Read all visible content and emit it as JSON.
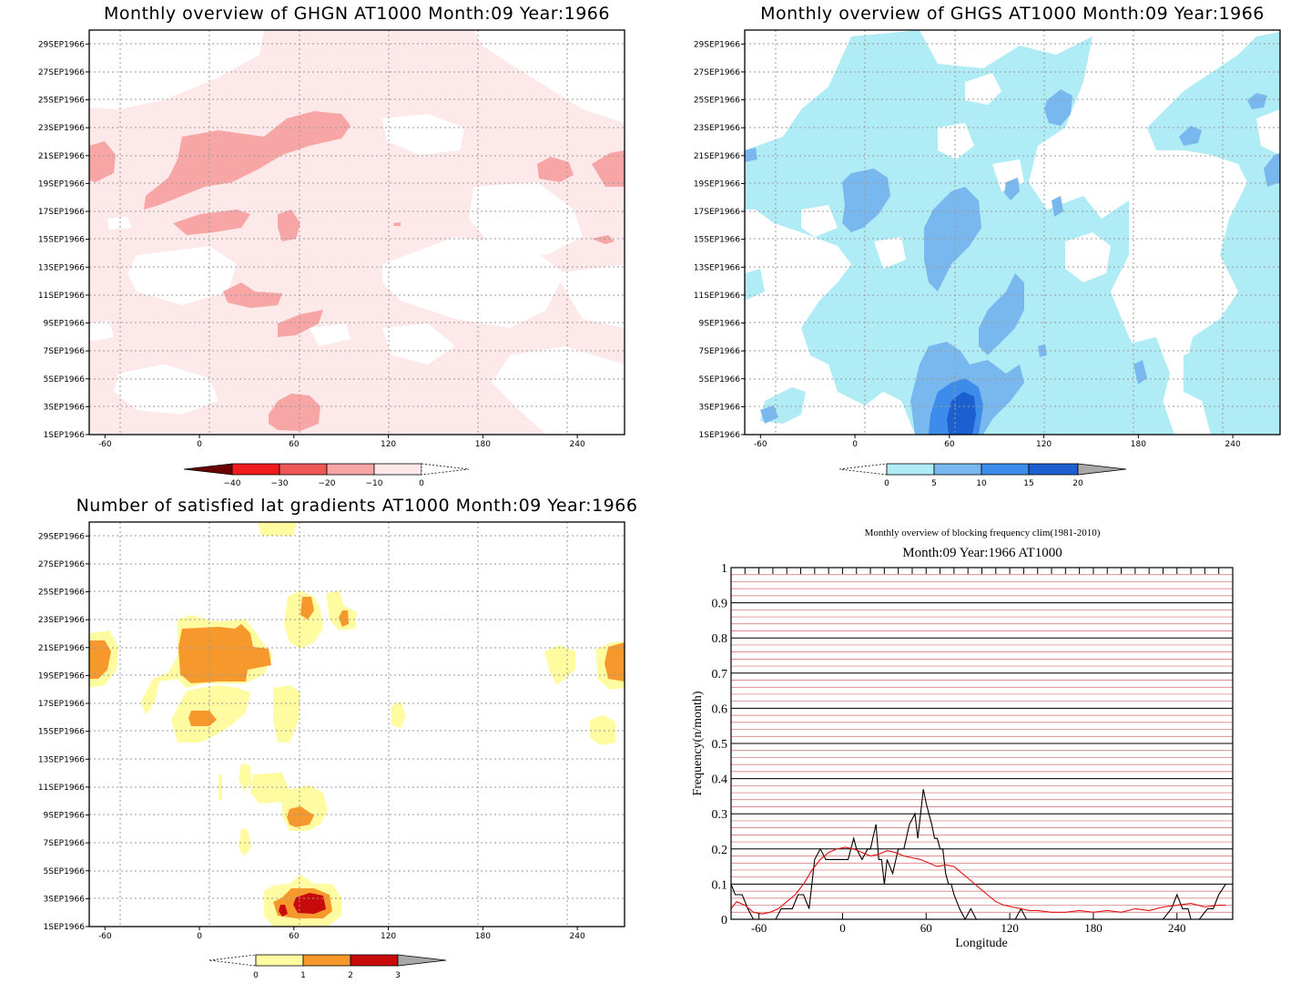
{
  "colors": {
    "ghgn": [
      "#6b0000",
      "#ee1c1c",
      "#ef5656",
      "#f7a5a5",
      "#fde9e9"
    ],
    "ghgs": [
      "#b0ecf5",
      "#78b8ef",
      "#3d8ceb",
      "#1c5fd0"
    ],
    "count": [
      "#fffba0",
      "#f7982d",
      "#c90a0a"
    ],
    "line_obs": "#000000",
    "line_clim": "#e01010",
    "grid_red": "#d26a6a"
  },
  "panels": {
    "ghgn": {
      "title": "Monthly overview of GHGN AT1000 Month:09 Year:1966",
      "colorbar_labels": [
        "−40",
        "−30",
        "−20",
        "−10",
        "0"
      ]
    },
    "ghgs": {
      "title": "Monthly overview of GHGS AT1000 Month:09 Year:1966",
      "colorbar_labels": [
        "0",
        "5",
        "10",
        "15",
        "20"
      ]
    },
    "count": {
      "title": "Number of satisfied lat gradients AT1000 Month:09 Year:1966",
      "colorbar_labels": [
        "0",
        "1",
        "2",
        "3"
      ]
    },
    "freq": {
      "title": "Monthly overview of blocking frequency clim(1981-2010)",
      "subtitle": "Month:09 Year:1966  AT1000",
      "xlabel": "Longitude",
      "ylabel": "Frequency(n/month)"
    }
  },
  "y_date_labels": [
    "29SEP1966",
    "27SEP1966",
    "25SEP1966",
    "23SEP1966",
    "21SEP1966",
    "19SEP1966",
    "17SEP1966",
    "15SEP1966",
    "13SEP1966",
    "11SEP1966",
    "9SEP1966",
    "7SEP1966",
    "5SEP1966",
    "3SEP1966",
    "1SEP1966"
  ],
  "x_lon_labels": [
    "-60",
    "0",
    "60",
    "120",
    "180",
    "240"
  ],
  "chart_data": [
    {
      "type": "heatmap",
      "panel": "ghgn",
      "x_range": [
        -70,
        270
      ],
      "y_range": [
        "1SEP1966",
        "30SEP1966"
      ],
      "contour_levels": [
        -40,
        -30,
        -20,
        -10,
        0
      ],
      "note_regions": [
        {
          "level": "-20 to -10",
          "lon": [
            -10,
            90
          ],
          "date": "20SEP1966–24SEP1966"
        },
        {
          "level": "-20 to -10",
          "lon": [
            40,
            75
          ],
          "date": "2SEP1966–4SEP1966"
        }
      ]
    },
    {
      "type": "heatmap",
      "panel": "ghgs",
      "x_range": [
        -70,
        270
      ],
      "y_range": [
        "1SEP1966",
        "30SEP1966"
      ],
      "contour_levels": [
        0,
        5,
        10,
        15,
        20
      ],
      "note_regions": [
        {
          "level": "15 to 20",
          "lon": [
            45,
            75
          ],
          "date": "1SEP1966–3SEP1966"
        }
      ]
    },
    {
      "type": "heatmap",
      "panel": "count",
      "x_range": [
        -70,
        270
      ],
      "y_range": [
        "1SEP1966",
        "30SEP1966"
      ],
      "contour_levels": [
        0,
        1,
        2,
        3
      ],
      "note_regions": [
        {
          "level": "2 to 3",
          "lon": [
            55,
            80
          ],
          "date": "2SEP1966–3SEP1966"
        },
        {
          "level": "1 to 2",
          "lon": [
            -15,
            40
          ],
          "date": "19SEP1966–22SEP1966"
        }
      ]
    },
    {
      "type": "line",
      "panel": "freq",
      "title": "Monthly overview of blocking frequency clim(1981-2010)",
      "subtitle": "Month:09 Year:1966  AT1000",
      "xlabel": "Longitude",
      "ylabel": "Frequency(n/month)",
      "xlim": [
        -80,
        280
      ],
      "ylim": [
        0,
        1
      ],
      "x_ticks": [
        -60,
        0,
        60,
        120,
        180,
        240
      ],
      "y_ticks": [
        0,
        0.1,
        0.2,
        0.3,
        0.4,
        0.5,
        0.6,
        0.7,
        0.8,
        0.9,
        1
      ],
      "grid": true,
      "series": [
        {
          "color": "#000000",
          "x": [
            -80,
            -77,
            -72,
            -68,
            -64,
            -60,
            -56,
            -52,
            -48,
            -44,
            -40,
            -36,
            -32,
            -28,
            -24,
            -20,
            -16,
            -12,
            -8,
            -4,
            0,
            4,
            8,
            10,
            14,
            18,
            20,
            24,
            26,
            28,
            30,
            32,
            36,
            40,
            44,
            48,
            52,
            54,
            56,
            58,
            60,
            62,
            64,
            66,
            68,
            70,
            72,
            74,
            76,
            78,
            80,
            84,
            88,
            92,
            96,
            100,
            104,
            108,
            112,
            116,
            120,
            124,
            128,
            132,
            136,
            140,
            150,
            160,
            170,
            180,
            190,
            200,
            210,
            220,
            230,
            236,
            240,
            244,
            248,
            250,
            256,
            262,
            266,
            270,
            275
          ],
          "y": [
            0.1,
            0.07,
            0.07,
            0.03,
            0.0,
            0.0,
            0.0,
            0.0,
            0.0,
            0.03,
            0.03,
            0.03,
            0.07,
            0.07,
            0.03,
            0.17,
            0.2,
            0.17,
            0.17,
            0.17,
            0.17,
            0.17,
            0.23,
            0.2,
            0.17,
            0.2,
            0.2,
            0.27,
            0.17,
            0.17,
            0.1,
            0.17,
            0.13,
            0.2,
            0.2,
            0.27,
            0.3,
            0.23,
            0.3,
            0.37,
            0.33,
            0.3,
            0.27,
            0.23,
            0.23,
            0.2,
            0.2,
            0.13,
            0.1,
            0.1,
            0.07,
            0.03,
            0.0,
            0.03,
            0.0,
            0.0,
            0.0,
            0.0,
            0.0,
            0.0,
            0.0,
            0.0,
            0.03,
            0.0,
            0.0,
            0.0,
            0.0,
            0.0,
            0.0,
            0.0,
            0.0,
            0.0,
            0.0,
            0.0,
            0.0,
            0.03,
            0.07,
            0.03,
            0.03,
            0.0,
            0.0,
            0.03,
            0.03,
            0.07,
            0.1
          ]
        },
        {
          "color": "#e01010",
          "x": [
            -80,
            -76,
            -70,
            -64,
            -58,
            -52,
            -46,
            -40,
            -34,
            -28,
            -22,
            -16,
            -10,
            -4,
            2,
            8,
            14,
            20,
            26,
            32,
            38,
            44,
            50,
            56,
            62,
            68,
            74,
            80,
            86,
            92,
            98,
            104,
            110,
            116,
            122,
            128,
            134,
            140,
            150,
            160,
            170,
            180,
            190,
            200,
            210,
            220,
            230,
            240,
            250,
            260,
            270,
            275
          ],
          "y": [
            0.03,
            0.05,
            0.04,
            0.02,
            0.015,
            0.02,
            0.03,
            0.05,
            0.07,
            0.1,
            0.14,
            0.17,
            0.19,
            0.2,
            0.205,
            0.2,
            0.19,
            0.18,
            0.185,
            0.195,
            0.19,
            0.18,
            0.175,
            0.17,
            0.16,
            0.15,
            0.155,
            0.15,
            0.13,
            0.11,
            0.09,
            0.07,
            0.05,
            0.04,
            0.035,
            0.03,
            0.025,
            0.025,
            0.02,
            0.02,
            0.025,
            0.02,
            0.025,
            0.02,
            0.03,
            0.025,
            0.035,
            0.04,
            0.045,
            0.035,
            0.04,
            0.04
          ]
        }
      ]
    }
  ]
}
